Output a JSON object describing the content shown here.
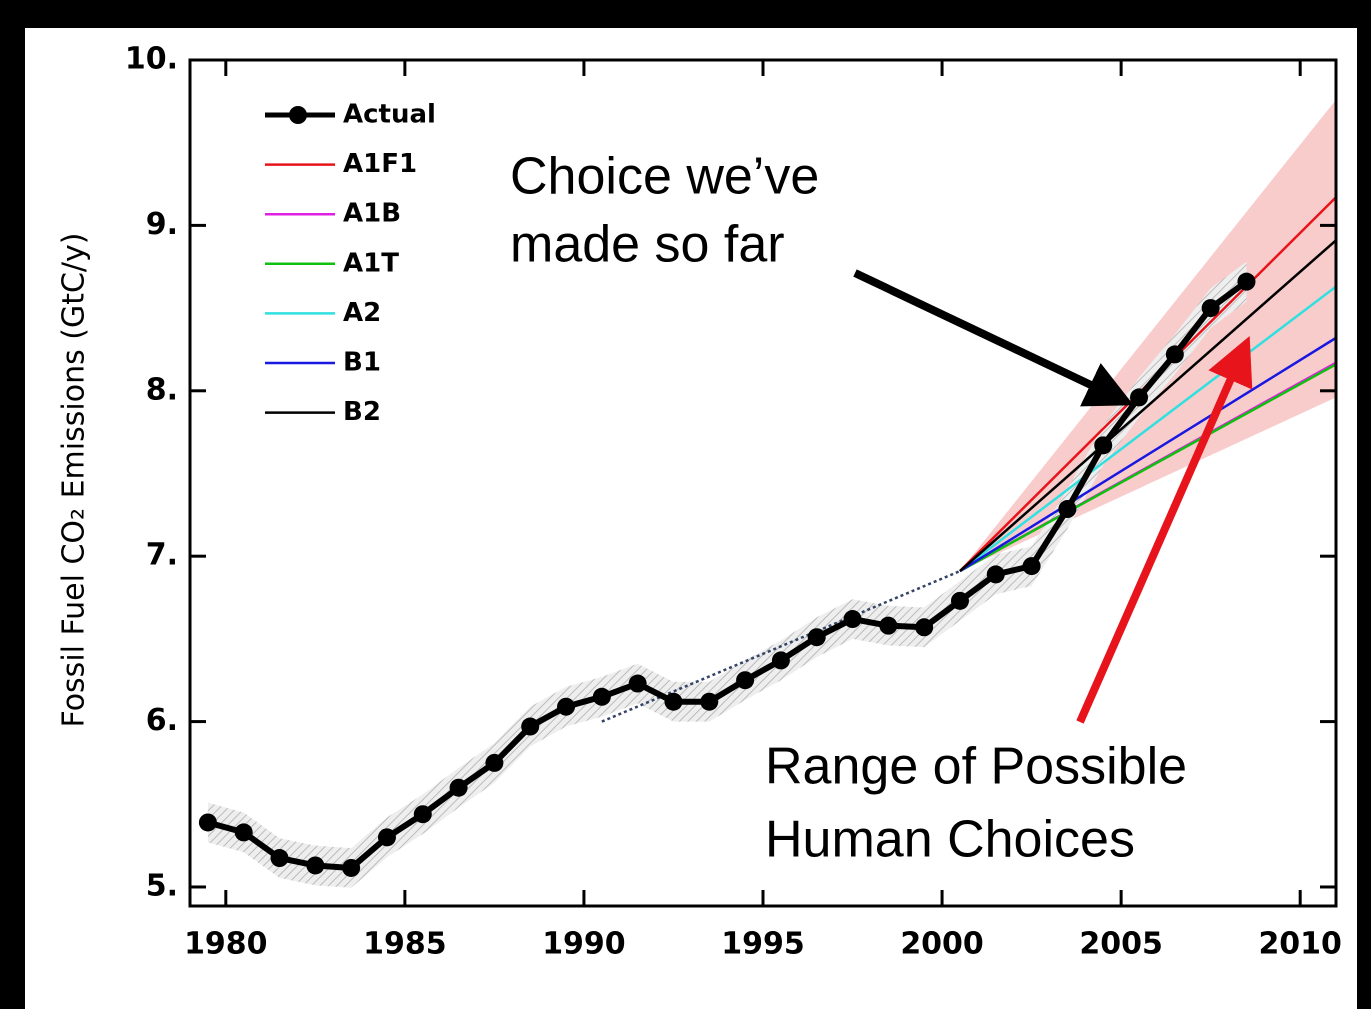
{
  "chart_data": {
    "type": "line",
    "ylabel": "Fossil Fuel CO₂ Emissions (GtC/y)",
    "xlim": [
      1979,
      2011
    ],
    "xticks": [
      1980,
      1985,
      1990,
      1995,
      2000,
      2005,
      2010
    ],
    "ylim": [
      4.885,
      10
    ],
    "yticks": [
      {
        "value": 5,
        "label": "5."
      },
      {
        "value": 6,
        "label": "6."
      },
      {
        "value": 7,
        "label": "7."
      },
      {
        "value": 8,
        "label": "8."
      },
      {
        "value": 9,
        "label": "9."
      },
      {
        "value": 10,
        "label": "10."
      }
    ],
    "range": {
      "color": "#f9cccc",
      "x": [
        2000.5,
        2011
      ],
      "lower": [
        6.91,
        7.96
      ],
      "upper": [
        6.91,
        9.76
      ]
    },
    "trend": {
      "color": "#334466",
      "x": [
        1990.5,
        2000.5
      ],
      "values": [
        6.0,
        6.91
      ]
    },
    "series": [
      {
        "name": "Actual",
        "color": "#000000",
        "markers": true,
        "uncertainty": 0.12,
        "x": [
          1979.5,
          1980.5,
          1981.5,
          1982.5,
          1983.5,
          1984.5,
          1985.5,
          1986.5,
          1987.5,
          1988.5,
          1989.5,
          1990.5,
          1991.5,
          1992.5,
          1993.5,
          1994.5,
          1995.5,
          1996.5,
          1997.5,
          1998.5,
          1999.5,
          2000.5,
          2001.5,
          2002.5,
          2003.5,
          2004.5,
          2005.5,
          2006.5,
          2007.5,
          2008.5
        ],
        "values": [
          5.39,
          5.33,
          5.175,
          5.13,
          5.115,
          5.3,
          5.44,
          5.6,
          5.75,
          5.97,
          6.09,
          6.15,
          6.23,
          6.12,
          6.12,
          6.25,
          6.37,
          6.51,
          6.62,
          6.58,
          6.57,
          6.73,
          6.89,
          6.94,
          7.285,
          7.67,
          7.96,
          8.22,
          8.5,
          8.66
        ]
      },
      {
        "name": "A1F1",
        "color": "#e8141c",
        "x": [
          2000.5,
          2011
        ],
        "values": [
          6.91,
          9.17
        ]
      },
      {
        "name": "A1B",
        "color": "#e020e0",
        "x": [
          2000.5,
          2011
        ],
        "values": [
          6.91,
          8.17
        ]
      },
      {
        "name": "A1T",
        "color": "#10c010",
        "x": [
          2000.5,
          2011
        ],
        "values": [
          6.91,
          8.16
        ]
      },
      {
        "name": "A2",
        "color": "#30e0e0",
        "x": [
          2000.5,
          2011
        ],
        "values": [
          6.91,
          8.63
        ]
      },
      {
        "name": "B1",
        "color": "#1818e0",
        "x": [
          2000.5,
          2011
        ],
        "values": [
          6.91,
          8.32
        ]
      },
      {
        "name": "B2",
        "color": "#000000",
        "x": [
          2000.5,
          2011
        ],
        "values": [
          6.91,
          8.91
        ]
      }
    ],
    "annotations": [
      {
        "lines": [
          "Choice we’ve",
          "made so far"
        ]
      },
      {
        "lines": [
          "Range of Possible",
          "Human Choices"
        ]
      }
    ]
  }
}
